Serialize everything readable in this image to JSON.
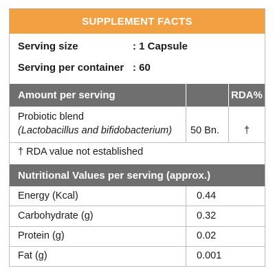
{
  "title": "SUPPLEMENT FACTS",
  "serving": {
    "size_label": "Serving size",
    "size_value": ": 1 Capsule",
    "per_container_label": "Serving per container",
    "per_container_value": ": 60"
  },
  "amount_table": {
    "header_label": "Amount per serving",
    "header_rda": "RDA%",
    "row": {
      "name": "Probiotic blend",
      "subname": "(Lactobacillus and bifidobacterium)",
      "amount": "50 Bn.",
      "rda": "†"
    },
    "footnote": "† RDA value not established"
  },
  "nutrition_table": {
    "header_label": "Nutritional Values per serving (approx.)",
    "rows": [
      {
        "name": "Energy (Kcal)",
        "value": "0.44"
      },
      {
        "name": "Carbohydrate (g)",
        "value": "0.32"
      },
      {
        "name": "Protein (g)",
        "value": "0.02"
      },
      {
        "name": "Fat (g)",
        "value": "0.001"
      }
    ]
  },
  "colors": {
    "title_bar": "#f3a043",
    "header_bar": "#6f6f6f",
    "grid_lines": "#bdbdbd"
  }
}
